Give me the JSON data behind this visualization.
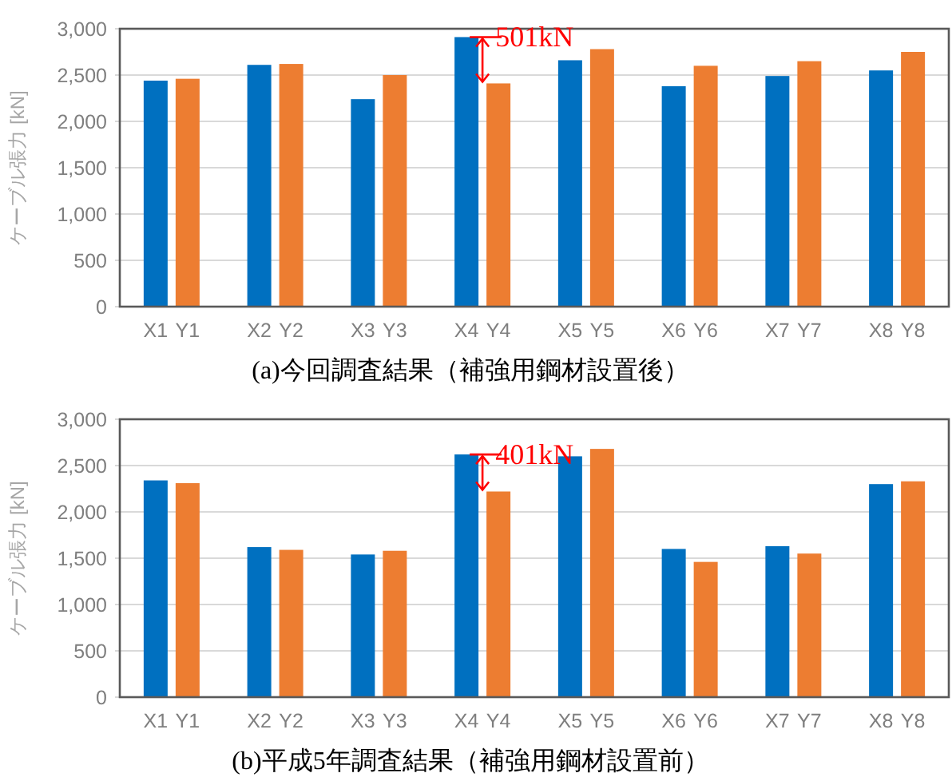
{
  "chart_data": [
    {
      "type": "bar",
      "title": "(a)今回調査結果（補強用鋼材設置後）",
      "ylabel": "ケーブル張力 [kN]",
      "categories": [
        "X1",
        "Y1",
        "X2",
        "Y2",
        "X3",
        "Y3",
        "X4",
        "Y4",
        "X5",
        "Y5",
        "X6",
        "Y6",
        "X7",
        "Y7",
        "X8",
        "Y8"
      ],
      "values": [
        2440,
        2460,
        2610,
        2620,
        2240,
        2500,
        2910,
        2410,
        2660,
        2780,
        2380,
        2600,
        2490,
        2650,
        2550,
        2750
      ],
      "colors": [
        "#0070c0",
        "#ed7d31",
        "#0070c0",
        "#ed7d31",
        "#0070c0",
        "#ed7d31",
        "#0070c0",
        "#ed7d31",
        "#0070c0",
        "#ed7d31",
        "#0070c0",
        "#ed7d31",
        "#0070c0",
        "#ed7d31",
        "#0070c0",
        "#ed7d31"
      ],
      "ylim": [
        0,
        3000
      ],
      "yticks": [
        {
          "value": 0,
          "label": "0"
        },
        {
          "value": 500,
          "label": "500"
        },
        {
          "value": 1000,
          "label": "1,000"
        },
        {
          "value": 1500,
          "label": "1,500"
        },
        {
          "value": 2000,
          "label": "2,000"
        },
        {
          "value": 2500,
          "label": "2,500"
        },
        {
          "value": 3000,
          "label": "3,000"
        }
      ],
      "grid": "y",
      "annotations": [
        {
          "text": "501kN",
          "x": "Y4",
          "y": 2410
        }
      ]
    },
    {
      "type": "bar",
      "title": "(b)平成5年調査結果（補強用鋼材設置前）",
      "ylabel": "ケーブル張力 [kN]",
      "categories": [
        "X1",
        "Y1",
        "X2",
        "Y2",
        "X3",
        "Y3",
        "X4",
        "Y4",
        "X5",
        "Y5",
        "X6",
        "Y6",
        "X7",
        "Y7",
        "X8",
        "Y8"
      ],
      "values": [
        2340,
        2310,
        1620,
        1590,
        1540,
        1580,
        2620,
        2220,
        2600,
        2680,
        1600,
        1460,
        1630,
        1550,
        2300,
        2330
      ],
      "colors": [
        "#0070c0",
        "#ed7d31",
        "#0070c0",
        "#ed7d31",
        "#0070c0",
        "#ed7d31",
        "#0070c0",
        "#ed7d31",
        "#0070c0",
        "#ed7d31",
        "#0070c0",
        "#ed7d31",
        "#0070c0",
        "#ed7d31",
        "#0070c0",
        "#ed7d31"
      ],
      "ylim": [
        0,
        3000
      ],
      "yticks": [
        {
          "value": 0,
          "label": "0"
        },
        {
          "value": 500,
          "label": "500"
        },
        {
          "value": 1000,
          "label": "1,000"
        },
        {
          "value": 1500,
          "label": "1,500"
        },
        {
          "value": 2000,
          "label": "2,000"
        },
        {
          "value": 2500,
          "label": "2,500"
        },
        {
          "value": 3000,
          "label": "3,000"
        }
      ],
      "grid": "y",
      "annotations": [
        {
          "text": "401kN",
          "x": "Y4",
          "y": 2220
        }
      ]
    }
  ]
}
